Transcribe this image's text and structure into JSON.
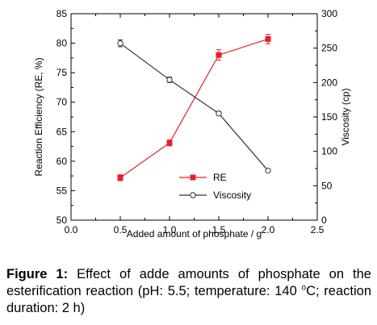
{
  "chart_data": {
    "type": "line",
    "xlabel": "Added amount of phosphate / g",
    "ylabel_left": "Reaction Efficiency (RE, %)",
    "ylabel_right": "Viscosity (cp)",
    "xlim": [
      0.0,
      2.5
    ],
    "ylim_left": [
      50,
      85
    ],
    "ylim_right": [
      0,
      300
    ],
    "x_ticks": [
      "0.0",
      "0.5",
      "1.0",
      "1.5",
      "2.0",
      "2.5"
    ],
    "y_ticks_left": [
      "50",
      "55",
      "60",
      "65",
      "70",
      "75",
      "80",
      "85"
    ],
    "y_ticks_right": [
      "0",
      "50",
      "100",
      "150",
      "200",
      "250",
      "300"
    ],
    "legend_position": "lower-right",
    "grid": false,
    "series": [
      {
        "name": "RE",
        "axis": "left",
        "color": "#e8202a",
        "marker": "filled-square",
        "x": [
          0.5,
          1.0,
          1.5,
          2.0
        ],
        "values": [
          57.2,
          63.1,
          78.0,
          80.7
        ],
        "errors": [
          0.5,
          0.5,
          0.9,
          0.8
        ]
      },
      {
        "name": "Viscosity",
        "axis": "right",
        "color": "#333333",
        "marker": "open-circle",
        "x": [
          0.5,
          1.0,
          1.5,
          2.0
        ],
        "values": [
          257,
          204,
          155,
          72
        ],
        "errors": [
          5,
          4,
          3,
          2
        ]
      }
    ]
  },
  "caption": {
    "label": "Figure 1:",
    "text_before_superscript": " Effect of adde amounts of phosphate on the esterification reaction (pH: 5.5; temperature: 140 ",
    "superscript": "o",
    "text_after_superscript": "C; reaction duration: 2 h)"
  }
}
